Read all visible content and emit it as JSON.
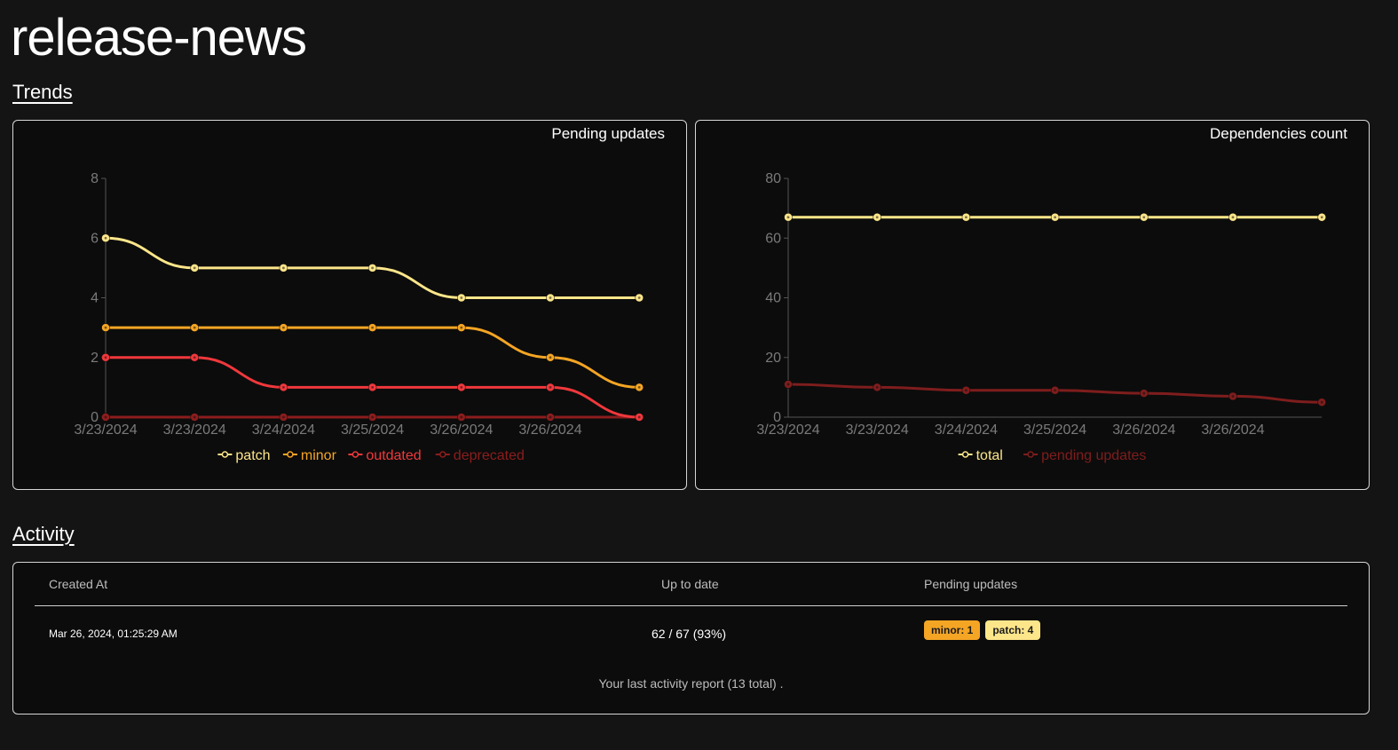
{
  "app": {
    "title": "release-news"
  },
  "sections": {
    "trends": "Trends",
    "activity": "Activity"
  },
  "colors": {
    "patch": "#fde68a",
    "minor": "#f5a524",
    "outdated": "#f0383c",
    "deprecated": "#8c1d1d",
    "total": "#fde68a",
    "pending_updates": "#7f1d1d",
    "axis": "#555555",
    "tick": "#7a7a7a"
  },
  "chart_data": [
    {
      "type": "line",
      "title": "Pending updates",
      "categories": [
        "3/23/2024",
        "3/23/2024",
        "3/24/2024",
        "3/25/2024",
        "3/26/2024",
        "3/26/2024",
        ""
      ],
      "yticks": [
        0,
        2,
        4,
        6,
        8
      ],
      "ylim": [
        0,
        8
      ],
      "legend_position": "bottom",
      "grid": false,
      "series": [
        {
          "name": "patch",
          "values": [
            6,
            5,
            5,
            5,
            4,
            4,
            4
          ]
        },
        {
          "name": "minor",
          "values": [
            3,
            3,
            3,
            3,
            3,
            2,
            1
          ]
        },
        {
          "name": "outdated",
          "values": [
            2,
            2,
            1,
            1,
            1,
            1,
            0
          ]
        },
        {
          "name": "deprecated",
          "values": [
            0,
            0,
            0,
            0,
            0,
            0,
            0
          ]
        }
      ]
    },
    {
      "type": "line",
      "title": "Dependencies count",
      "categories": [
        "3/23/2024",
        "3/23/2024",
        "3/24/2024",
        "3/25/2024",
        "3/26/2024",
        "3/26/2024",
        ""
      ],
      "yticks": [
        0,
        20,
        40,
        60,
        80
      ],
      "ylim": [
        0,
        80
      ],
      "legend_position": "bottom",
      "grid": false,
      "series": [
        {
          "name": "total",
          "values": [
            67,
            67,
            67,
            67,
            67,
            67,
            67
          ]
        },
        {
          "name": "pending updates",
          "values": [
            11,
            10,
            9,
            9,
            8,
            7,
            5
          ]
        }
      ]
    }
  ],
  "activity": {
    "headers": {
      "created_at": "Created At",
      "up_to_date": "Up to date",
      "pending_updates": "Pending updates"
    },
    "rows": [
      {
        "created_at": "Mar 26, 2024, 01:25:29 AM",
        "up_to_date": "62 / 67 (93%)",
        "badges": [
          {
            "label": "minor: 1",
            "color": "#f5a524"
          },
          {
            "label": "patch: 4",
            "color": "#fde68a"
          }
        ]
      }
    ],
    "footer": "Your last activity report (13 total) ."
  }
}
